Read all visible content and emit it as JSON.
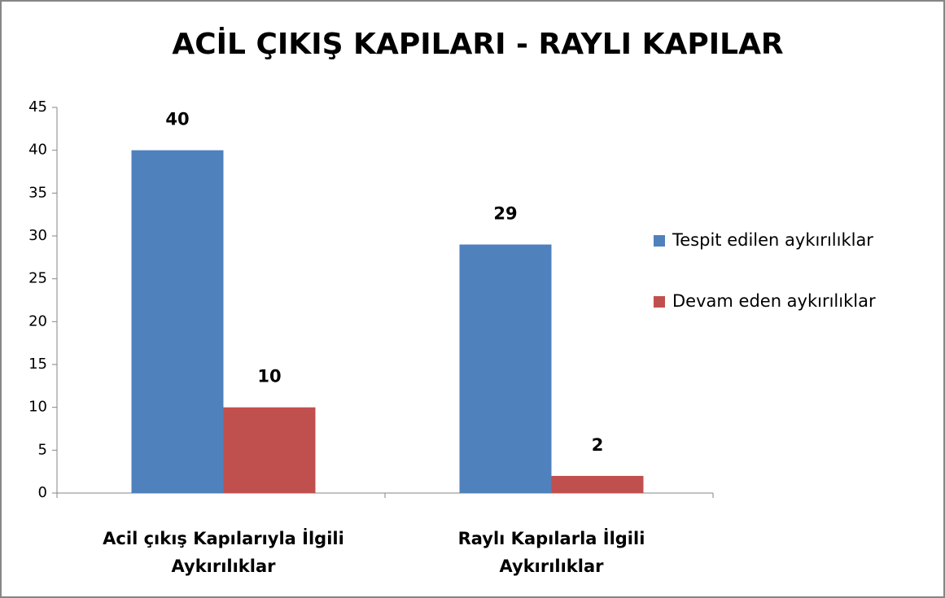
{
  "chart_data": {
    "type": "bar",
    "title": "ACİL ÇIKIŞ KAPILARI - RAYLI KAPILAR",
    "categories": [
      "Acil çıkış Kapılarıyla İlgili\nAykırılıklar",
      "Raylı Kapılarla İlgili\nAykırılıklar"
    ],
    "series": [
      {
        "name": "Tespit edilen aykırılıklar",
        "color": "#4f81bd",
        "values": [
          40,
          29
        ]
      },
      {
        "name": "Devam eden aykırılıklar",
        "color": "#c0504d",
        "values": [
          10,
          2
        ]
      }
    ],
    "ylim": [
      0,
      45
    ],
    "yticks": [
      0,
      5,
      10,
      15,
      20,
      25,
      30,
      35,
      40,
      45
    ],
    "grid": false,
    "legend": "right"
  }
}
